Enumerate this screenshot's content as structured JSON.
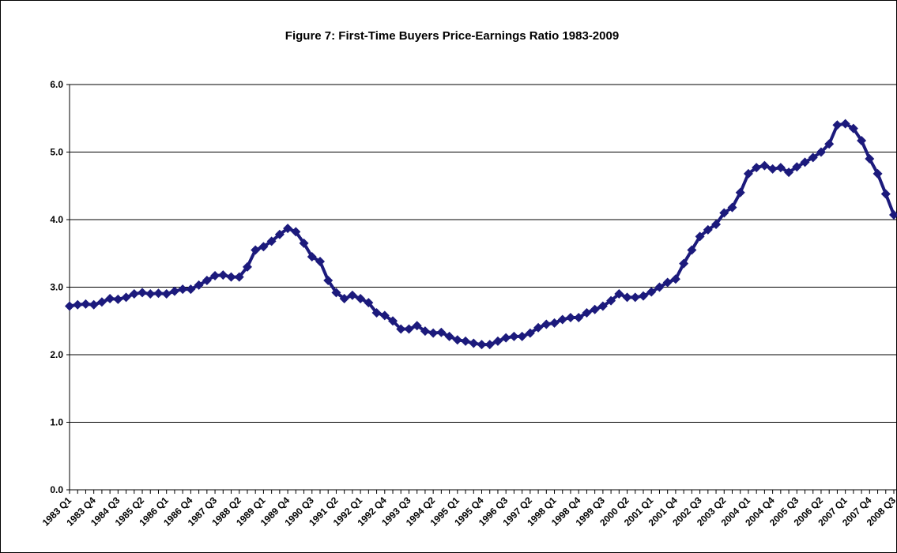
{
  "chart_data": {
    "type": "line",
    "title": "Figure 7: First-Time Buyers Price-Earnings Ratio 1983-2009",
    "categories": [
      "1983 Q1",
      null,
      null,
      "1983 Q4",
      null,
      null,
      "1984 Q3",
      null,
      null,
      "1985 Q2",
      null,
      null,
      "1986 Q1",
      null,
      null,
      "1986 Q4",
      null,
      null,
      "1987 Q3",
      null,
      null,
      "1988 Q2",
      null,
      null,
      "1989 Q1",
      null,
      null,
      "1989 Q4",
      null,
      null,
      "1990 Q3",
      null,
      null,
      "1991 Q2",
      null,
      null,
      "1992 Q1",
      null,
      null,
      "1992 Q4",
      null,
      null,
      "1993 Q3",
      null,
      null,
      "1994 Q2",
      null,
      null,
      "1995 Q1",
      null,
      null,
      "1995 Q4",
      null,
      null,
      "1996 Q3",
      null,
      null,
      "1997 Q2",
      null,
      null,
      "1998 Q1",
      null,
      null,
      "1998 Q4",
      null,
      null,
      "1999 Q3",
      null,
      null,
      "2000 Q2",
      null,
      null,
      "2001 Q1",
      null,
      null,
      "2001 Q4",
      null,
      null,
      "2002 Q3",
      null,
      null,
      "2003 Q2",
      null,
      null,
      "2004 Q1",
      null,
      null,
      "2004 Q4",
      null,
      null,
      "2005 Q3",
      null,
      null,
      "2006 Q2",
      null,
      null,
      "2007 Q1",
      null,
      null,
      "2007 Q4",
      null,
      null,
      "2008 Q3"
    ],
    "values": [
      2.72,
      2.74,
      2.75,
      2.74,
      2.78,
      2.83,
      2.82,
      2.85,
      2.9,
      2.92,
      2.9,
      2.91,
      2.9,
      2.94,
      2.97,
      2.97,
      3.03,
      3.1,
      3.17,
      3.18,
      3.15,
      3.15,
      3.3,
      3.55,
      3.6,
      3.68,
      3.78,
      3.87,
      3.82,
      3.65,
      3.45,
      3.38,
      3.1,
      2.92,
      2.83,
      2.88,
      2.83,
      2.77,
      2.62,
      2.58,
      2.5,
      2.38,
      2.38,
      2.43,
      2.35,
      2.32,
      2.33,
      2.27,
      2.22,
      2.2,
      2.17,
      2.15,
      2.15,
      2.2,
      2.25,
      2.27,
      2.27,
      2.32,
      2.4,
      2.45,
      2.47,
      2.52,
      2.55,
      2.55,
      2.62,
      2.67,
      2.72,
      2.8,
      2.9,
      2.85,
      2.85,
      2.87,
      2.93,
      3.0,
      3.07,
      3.12,
      3.35,
      3.55,
      3.75,
      3.85,
      3.93,
      4.1,
      4.18,
      4.4,
      4.68,
      4.77,
      4.8,
      4.75,
      4.77,
      4.7,
      4.78,
      4.85,
      4.92,
      5.0,
      5.12,
      5.4,
      5.42,
      5.35,
      5.17,
      4.9,
      4.68,
      4.38,
      4.07
    ],
    "color": "#1c1a7c",
    "ylim": [
      0,
      6
    ],
    "yticks": [
      {
        "value": 0,
        "label": "0.0"
      },
      {
        "value": 1,
        "label": "1.0"
      },
      {
        "value": 2,
        "label": "2.0"
      },
      {
        "value": 3,
        "label": "3.0"
      },
      {
        "value": 4,
        "label": "4.0"
      },
      {
        "value": 5,
        "label": "5.0"
      },
      {
        "value": 6,
        "label": "6.0"
      }
    ],
    "grid": true
  }
}
